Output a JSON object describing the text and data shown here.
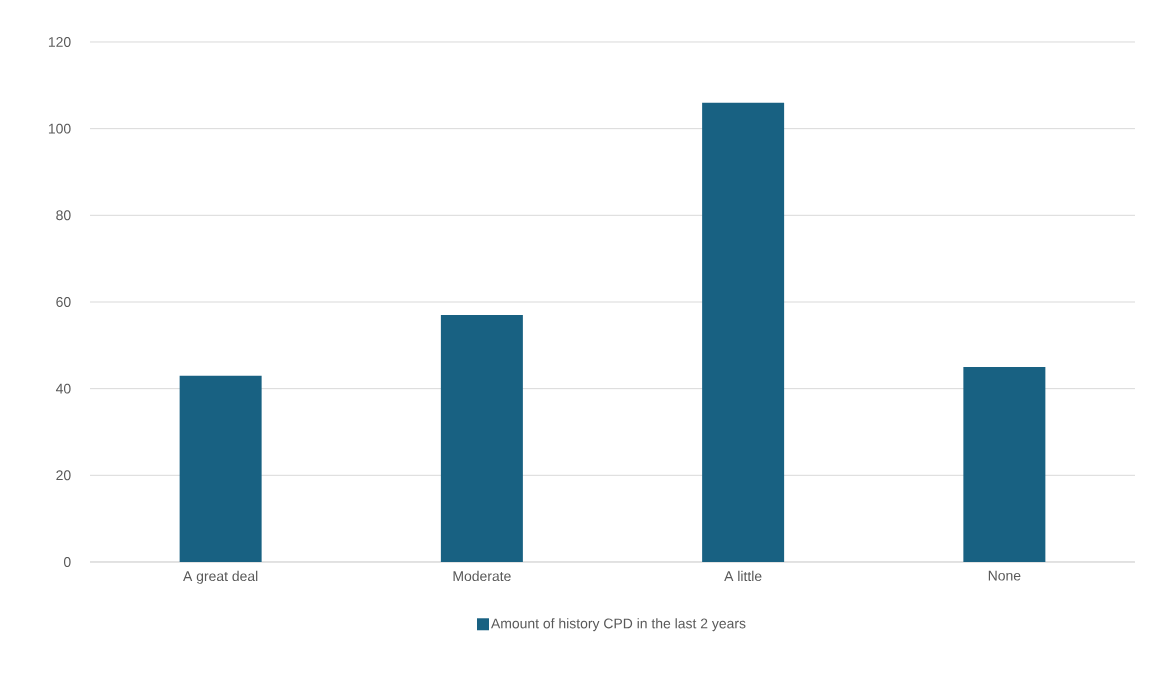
{
  "chart_data": {
    "type": "bar",
    "categories": [
      "A great deal",
      "Moderate",
      "A little",
      "None"
    ],
    "series": [
      {
        "name": "Amount of history CPD in the last 2 years",
        "color": "#186182",
        "values": [
          43,
          57,
          106,
          45
        ]
      }
    ],
    "ylim": [
      0,
      120
    ],
    "yticks": [
      0,
      20,
      40,
      60,
      80,
      100,
      120
    ],
    "grid": "y",
    "legend": "bottom"
  }
}
